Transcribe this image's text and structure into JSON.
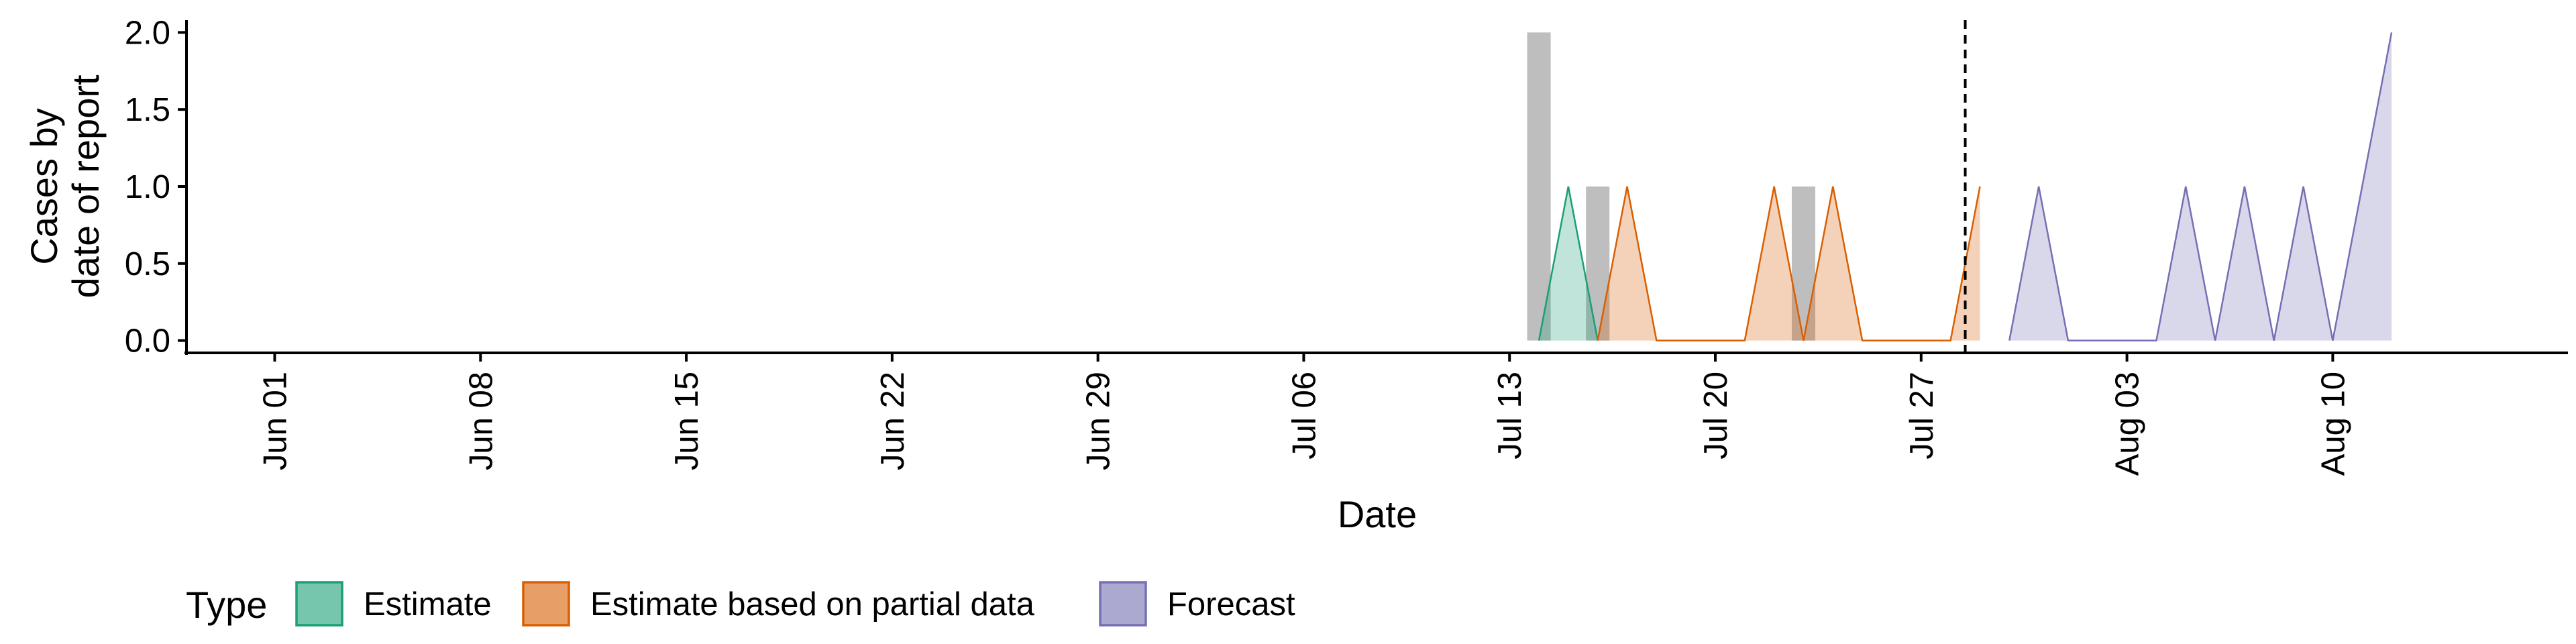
{
  "chart_data": {
    "type": "area",
    "xlabel": "Date",
    "ylabel": [
      "Cases by",
      "date of report"
    ],
    "x_range": [
      "2020-05-29",
      "2020-08-18"
    ],
    "ylim": [
      -0.08,
      2.08
    ],
    "y_ticks": [
      {
        "value": 0.0,
        "label": "0.0"
      },
      {
        "value": 0.5,
        "label": "0.5"
      },
      {
        "value": 1.0,
        "label": "1.0"
      },
      {
        "value": 1.5,
        "label": "1.5"
      },
      {
        "value": 2.0,
        "label": "2.0"
      }
    ],
    "x_ticks": [
      {
        "date": "2020-06-01",
        "label": "Jun 01"
      },
      {
        "date": "2020-06-08",
        "label": "Jun 08"
      },
      {
        "date": "2020-06-15",
        "label": "Jun 15"
      },
      {
        "date": "2020-06-22",
        "label": "Jun 22"
      },
      {
        "date": "2020-06-29",
        "label": "Jun 29"
      },
      {
        "date": "2020-07-06",
        "label": "Jul 06"
      },
      {
        "date": "2020-07-13",
        "label": "Jul 13"
      },
      {
        "date": "2020-07-20",
        "label": "Jul 20"
      },
      {
        "date": "2020-07-27",
        "label": "Jul 27"
      },
      {
        "date": "2020-08-03",
        "label": "Aug 03"
      },
      {
        "date": "2020-08-10",
        "label": "Aug 10"
      }
    ],
    "reported_cases": [
      {
        "date": "2020-07-14",
        "value": 2
      },
      {
        "date": "2020-07-16",
        "value": 1
      },
      {
        "date": "2020-07-23",
        "value": 1
      }
    ],
    "forecast_date": "2020-07-28",
    "legend": {
      "title": "Type",
      "position": "bottom",
      "entries": [
        "Estimate",
        "Estimate based on partial data",
        "Forecast"
      ]
    },
    "series": [
      {
        "name": "Estimate",
        "color": "#1B9E77",
        "points": [
          {
            "date": "2020-07-14",
            "value": 0
          },
          {
            "date": "2020-07-15",
            "value": 1
          },
          {
            "date": "2020-07-16",
            "value": 0
          }
        ]
      },
      {
        "name": "Estimate based on partial data",
        "color": "#D95F02",
        "points": [
          {
            "date": "2020-07-16",
            "value": 0
          },
          {
            "date": "2020-07-17",
            "value": 1
          },
          {
            "date": "2020-07-18",
            "value": 0
          },
          {
            "date": "2020-07-19",
            "value": 0
          },
          {
            "date": "2020-07-20",
            "value": 0
          },
          {
            "date": "2020-07-21",
            "value": 0
          },
          {
            "date": "2020-07-22",
            "value": 1
          },
          {
            "date": "2020-07-23",
            "value": 0
          },
          {
            "date": "2020-07-24",
            "value": 1
          },
          {
            "date": "2020-07-25",
            "value": 0
          },
          {
            "date": "2020-07-26",
            "value": 0
          },
          {
            "date": "2020-07-27",
            "value": 0
          },
          {
            "date": "2020-07-28",
            "value": 0
          },
          {
            "date": "2020-07-29",
            "value": 1
          }
        ]
      },
      {
        "name": "Forecast",
        "color": "#7570B3",
        "points": [
          {
            "date": "2020-07-30",
            "value": 0
          },
          {
            "date": "2020-07-31",
            "value": 1
          },
          {
            "date": "2020-08-01",
            "value": 0
          },
          {
            "date": "2020-08-02",
            "value": 0
          },
          {
            "date": "2020-08-03",
            "value": 0
          },
          {
            "date": "2020-08-04",
            "value": 0
          },
          {
            "date": "2020-08-05",
            "value": 1
          },
          {
            "date": "2020-08-06",
            "value": 0
          },
          {
            "date": "2020-08-07",
            "value": 1
          },
          {
            "date": "2020-08-08",
            "value": 0
          },
          {
            "date": "2020-08-09",
            "value": 1
          },
          {
            "date": "2020-08-10",
            "value": 0
          },
          {
            "date": "2020-08-11",
            "value": 1
          },
          {
            "date": "2020-08-12",
            "value": 2
          }
        ]
      }
    ]
  }
}
